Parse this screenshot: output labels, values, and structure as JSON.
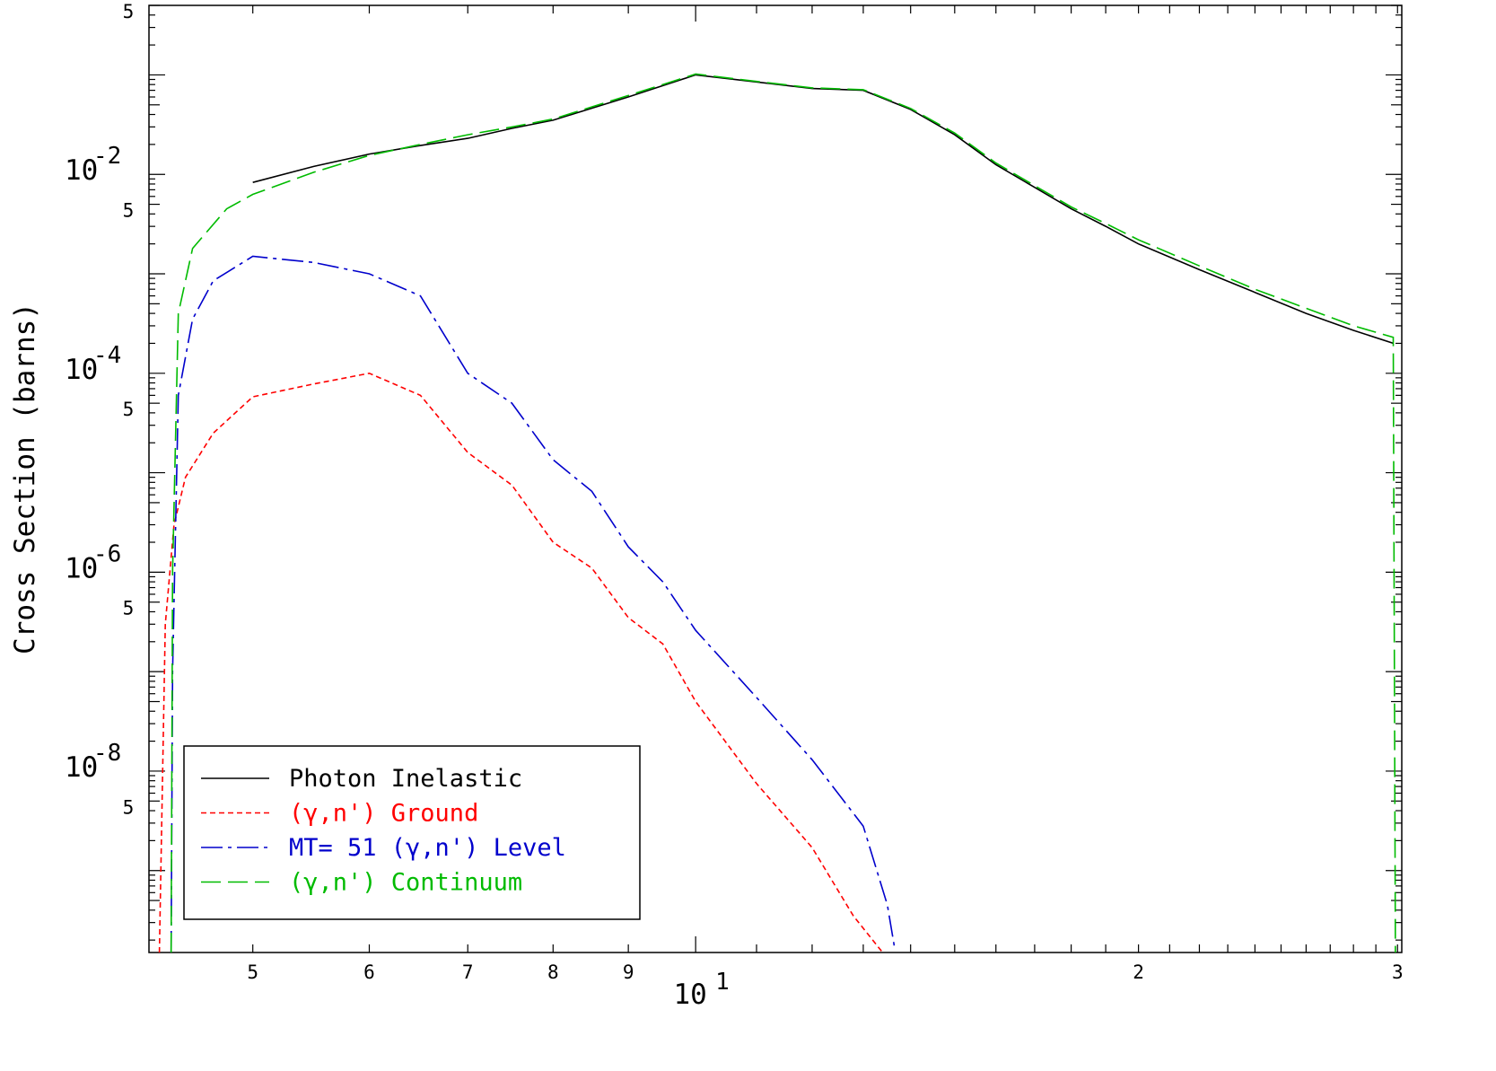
{
  "chart_data": {
    "type": "line",
    "title": "",
    "xlabel": "",
    "ylabel": "Cross Section (barns)",
    "x_scale": "log",
    "y_scale": "log",
    "xlim": [
      4.25,
      30.2
    ],
    "ylim": [
      1.5e-10,
      0.5
    ],
    "x_major_ticks": [
      {
        "value": 10,
        "base": "10",
        "exp": "1"
      }
    ],
    "x_minor_tick_labels": [
      {
        "value": 5,
        "label": "5"
      },
      {
        "value": 6,
        "label": "6"
      },
      {
        "value": 7,
        "label": "7"
      },
      {
        "value": 8,
        "label": "8"
      },
      {
        "value": 9,
        "label": "9"
      },
      {
        "value": 20,
        "label": "2"
      },
      {
        "value": 30,
        "label": "3"
      }
    ],
    "y_major_ticks": [
      {
        "value": 0.01,
        "base": "10",
        "exp": "-2"
      },
      {
        "value": 0.0001,
        "base": "10",
        "exp": "-4"
      },
      {
        "value": 1e-06,
        "base": "10",
        "exp": "-6"
      },
      {
        "value": 1e-08,
        "base": "10",
        "exp": "-8"
      }
    ],
    "y_minor_tick_labels": [
      {
        "value": 0.5,
        "label": "5"
      },
      {
        "value": 0.005,
        "label": "5"
      },
      {
        "value": 5e-05,
        "label": "5"
      },
      {
        "value": 5e-07,
        "label": "5"
      },
      {
        "value": 5e-09,
        "label": "5"
      }
    ],
    "legend_position": "bottom-left",
    "series": [
      {
        "name": "Photon Inelastic",
        "color": "#000000",
        "dash": "solid",
        "points": [
          [
            5.0,
            0.0083
          ],
          [
            5.5,
            0.012
          ],
          [
            6.0,
            0.016
          ],
          [
            6.5,
            0.0195
          ],
          [
            7.0,
            0.023
          ],
          [
            7.5,
            0.029
          ],
          [
            8.0,
            0.035
          ],
          [
            9.0,
            0.06
          ],
          [
            10.0,
            0.1
          ],
          [
            11.0,
            0.085
          ],
          [
            12.0,
            0.073
          ],
          [
            13.0,
            0.07
          ],
          [
            14.0,
            0.045
          ],
          [
            15.0,
            0.025
          ],
          [
            16.0,
            0.0125
          ],
          [
            17.0,
            0.0074
          ],
          [
            18.0,
            0.0045
          ],
          [
            19.0,
            0.003
          ],
          [
            20.0,
            0.002
          ],
          [
            22.0,
            0.0011
          ],
          [
            24.0,
            0.00065
          ],
          [
            26.0,
            0.0004
          ],
          [
            28.0,
            0.00027
          ],
          [
            29.8,
            0.0002
          ]
        ]
      },
      {
        "name": "(γ,n') Ground",
        "color": "#ff0000",
        "dash": "short-dash",
        "points": [
          [
            4.32,
            1e-10
          ],
          [
            4.36,
            3e-07
          ],
          [
            4.42,
            3e-06
          ],
          [
            4.5,
            9e-06
          ],
          [
            4.7,
            2.5e-05
          ],
          [
            5.0,
            5.8e-05
          ],
          [
            5.5,
            7.8e-05
          ],
          [
            6.0,
            0.0001
          ],
          [
            6.5,
            6e-05
          ],
          [
            7.0,
            1.6e-05
          ],
          [
            7.5,
            7.5e-06
          ],
          [
            8.0,
            2e-06
          ],
          [
            8.5,
            1.1e-06
          ],
          [
            9.0,
            3.5e-07
          ],
          [
            9.5,
            1.9e-07
          ],
          [
            10.0,
            5e-08
          ],
          [
            11.0,
            7.5e-09
          ],
          [
            12.0,
            1.7e-09
          ],
          [
            12.8,
            3.5e-10
          ],
          [
            13.4,
            1.3e-10
          ]
        ]
      },
      {
        "name": "MT= 51 (γ,n') Level",
        "color": "#0000cc",
        "dash": "dash-dot",
        "points": [
          [
            4.4,
            1e-10
          ],
          [
            4.41,
            1e-07
          ],
          [
            4.45,
            6e-05
          ],
          [
            4.55,
            0.00035
          ],
          [
            4.7,
            0.00085
          ],
          [
            5.0,
            0.0015
          ],
          [
            5.5,
            0.0013
          ],
          [
            6.0,
            0.001
          ],
          [
            6.5,
            0.0006
          ],
          [
            7.0,
            0.0001
          ],
          [
            7.5,
            5e-05
          ],
          [
            8.0,
            1.35e-05
          ],
          [
            8.5,
            6.5e-06
          ],
          [
            9.0,
            1.8e-06
          ],
          [
            9.5,
            8e-07
          ],
          [
            10.0,
            2.6e-07
          ],
          [
            11.0,
            5.5e-08
          ],
          [
            12.0,
            1.3e-08
          ],
          [
            13.0,
            2.8e-09
          ],
          [
            13.5,
            4.5e-10
          ],
          [
            13.65,
            1.7e-10
          ]
        ]
      },
      {
        "name": "(γ,n') Continuum",
        "color": "#00bb00",
        "dash": "long-dash",
        "points": [
          [
            4.4,
            1e-10
          ],
          [
            4.41,
            1e-06
          ],
          [
            4.45,
            0.0004
          ],
          [
            4.55,
            0.0018
          ],
          [
            4.8,
            0.0045
          ],
          [
            5.0,
            0.0063
          ],
          [
            5.5,
            0.0105
          ],
          [
            6.0,
            0.0155
          ],
          [
            6.5,
            0.02
          ],
          [
            7.0,
            0.025
          ],
          [
            7.5,
            0.03
          ],
          [
            8.0,
            0.036
          ],
          [
            9.0,
            0.062
          ],
          [
            10.0,
            0.102
          ],
          [
            11.0,
            0.086
          ],
          [
            12.0,
            0.074
          ],
          [
            13.0,
            0.071
          ],
          [
            14.0,
            0.046
          ],
          [
            15.0,
            0.026
          ],
          [
            16.0,
            0.013
          ],
          [
            17.0,
            0.0077
          ],
          [
            18.0,
            0.0047
          ],
          [
            19.0,
            0.0032
          ],
          [
            20.0,
            0.0022
          ],
          [
            22.0,
            0.0012
          ],
          [
            24.0,
            0.0007
          ],
          [
            26.0,
            0.00045
          ],
          [
            28.0,
            0.0003
          ],
          [
            29.8,
            0.00023
          ],
          [
            29.9,
            1e-10
          ]
        ]
      }
    ]
  }
}
